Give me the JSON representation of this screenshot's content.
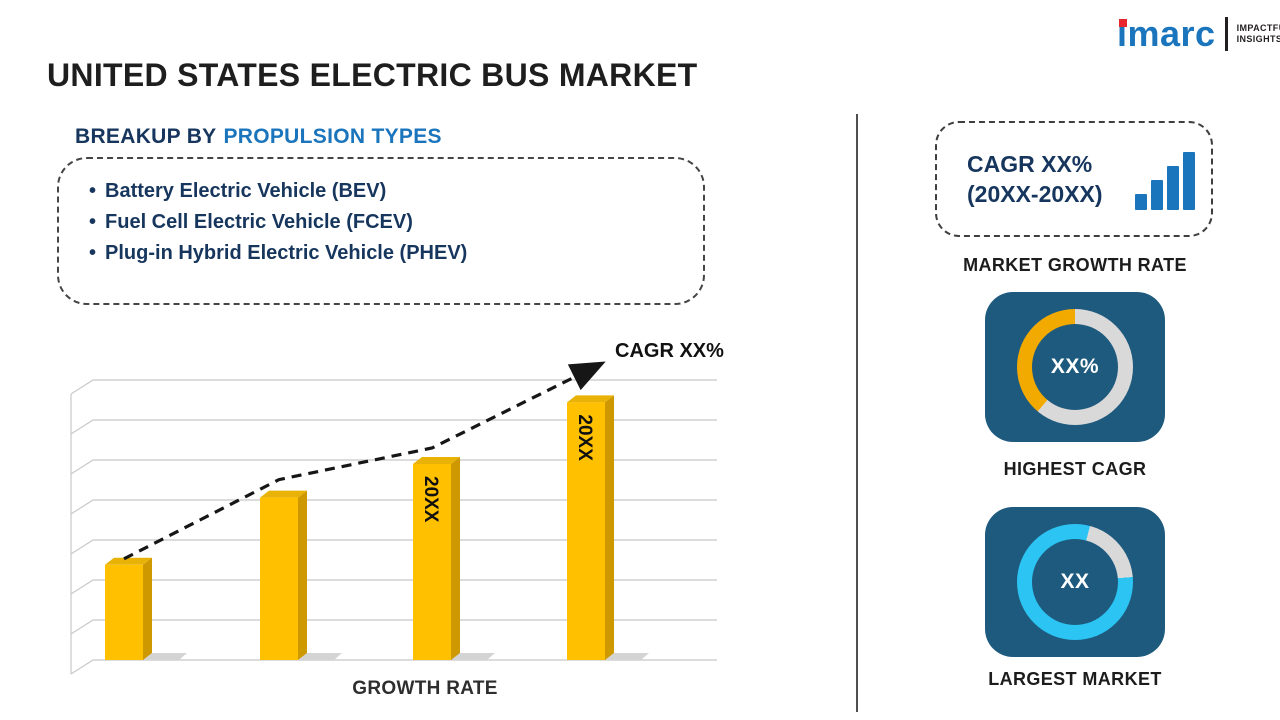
{
  "accent": {
    "blue": "#1B75BC",
    "navy": "#17365D",
    "red": "#E8262D"
  },
  "logo": {
    "brand": "imarc",
    "tagline_line1": "IMPACTFUL",
    "tagline_line2": "INSIGHTS"
  },
  "title": "UNITED STATES ELECTRIC BUS MARKET",
  "breakup": {
    "heading_prefix": "BREAKUP BY",
    "heading_highlight": "PROPULSION TYPES",
    "bullet": "•",
    "items": [
      "Battery Electric Vehicle (BEV)",
      "Fuel Cell Electric Vehicle (FCEV)",
      "Plug-in Hybrid Electric Vehicle (PHEV)"
    ]
  },
  "chart_data": {
    "type": "bar",
    "title": "",
    "xlabel": "GROWTH RATE",
    "ylabel": "",
    "categories": [
      "",
      "",
      "20XX",
      "20XX"
    ],
    "values": [
      34,
      58,
      70,
      92
    ],
    "ylim": [
      0,
      100
    ],
    "gridlines": 8,
    "grid": true,
    "legend_position": "none",
    "annotation": "CAGR XX%",
    "trendline": "dashed-arrow",
    "bar_color": "#FFC000",
    "bar_side_color": "#CE9800",
    "bar_top_color": "#E8B206"
  },
  "sidebar": {
    "growth_card": {
      "line1": "CAGR XX%",
      "line2": "(20XX-20XX)"
    },
    "market_growth_label": "MARKET GROWTH RATE",
    "highest_cagr": {
      "value": "XX%",
      "label": "HIGHEST CAGR",
      "tile_color": "#1E5A7E",
      "ring_color": "#F2A900",
      "ring_track": "#D9D9D9",
      "track_arc": [
        0,
        220
      ]
    },
    "largest_market": {
      "value": "XX",
      "label": "LARGEST MARKET",
      "tile_color": "#1E5A7E",
      "ring_color": "#2BC4F3",
      "ring_track": "#D9D9D9",
      "track_arc": [
        15,
        85
      ]
    }
  }
}
